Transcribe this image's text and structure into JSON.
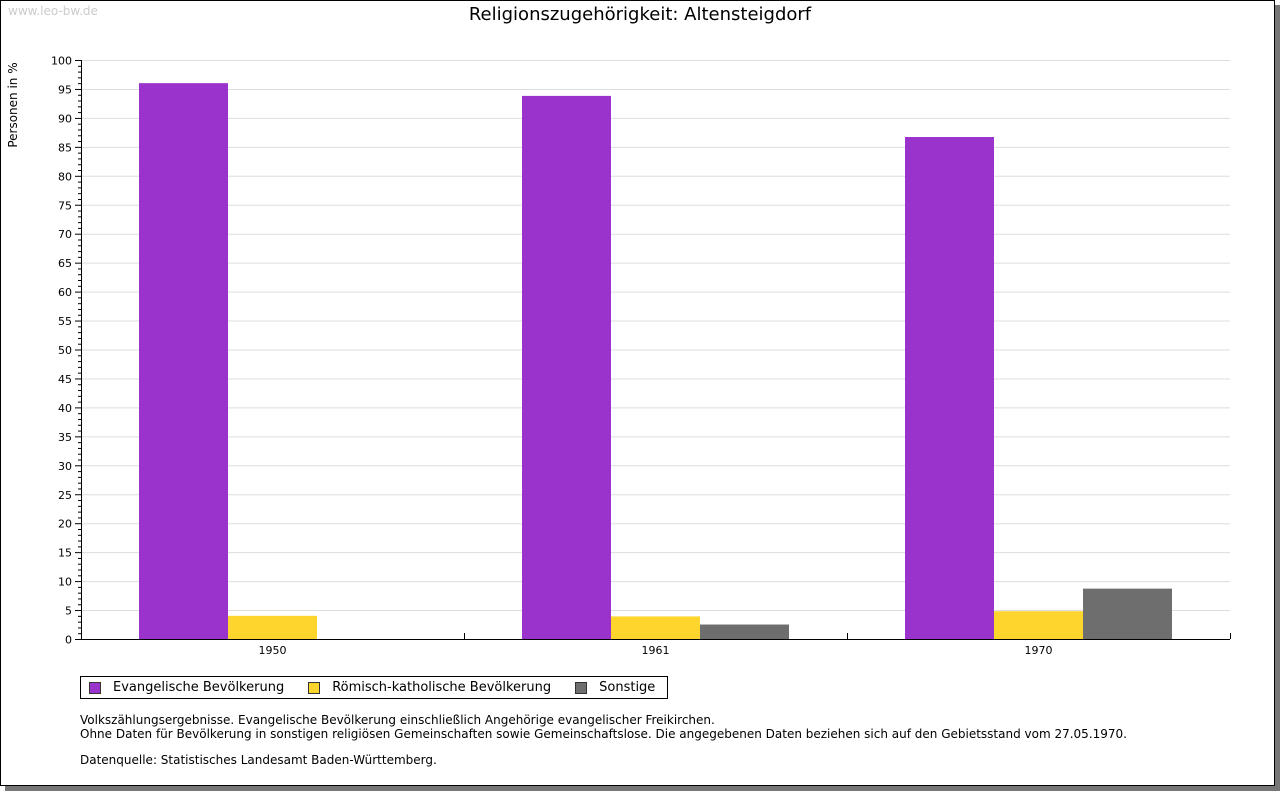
{
  "watermark": "www.leo-bw.de",
  "chart_data": {
    "type": "bar",
    "title": "Religionszugehörigkeit: Altensteigdorf",
    "ylabel": "Personen in %",
    "xlabel": "",
    "ylim": [
      0,
      100
    ],
    "ytick_step": 5,
    "grid": true,
    "categories": [
      "1950",
      "1961",
      "1970"
    ],
    "series": [
      {
        "name": "Evangelische Bevölkerung",
        "color": "#9933cc",
        "values": [
          96.0,
          93.8,
          86.7
        ]
      },
      {
        "name": "Römisch-katholische Bevölkerung",
        "color": "#fdd52c",
        "values": [
          4.0,
          3.9,
          4.8
        ]
      },
      {
        "name": "Sonstige",
        "color": "#6e6e6e",
        "values": [
          null,
          2.5,
          8.7
        ]
      }
    ],
    "legend": "bottom-left"
  },
  "notes": [
    "Volkszählungsergebnisse. Evangelische Bevölkerung einschließlich Angehörige evangelischer Freikirchen.",
    "Ohne Daten für Bevölkerung in sonstigen religiösen Gemeinschaften sowie Gemeinschaftslose. Die angegebenen Daten beziehen sich auf den Gebietsstand vom 27.05.1970.",
    "Datenquelle: Statistisches Landesamt Baden-Württemberg."
  ]
}
